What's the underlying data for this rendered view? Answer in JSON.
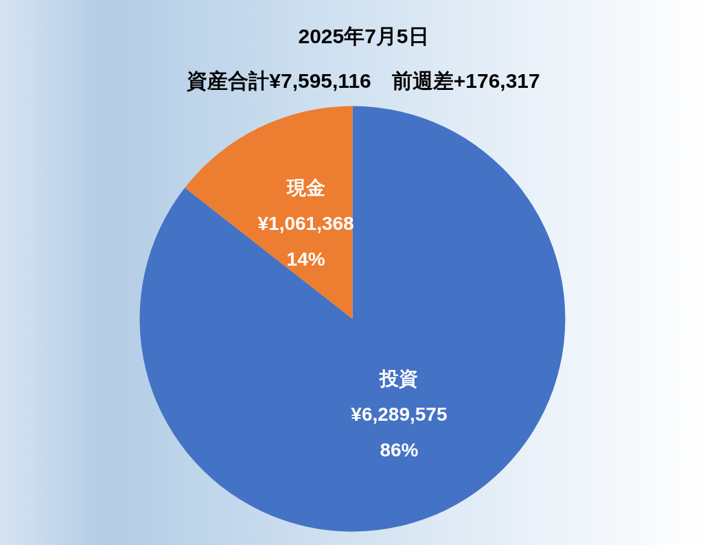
{
  "chart_data": {
    "type": "pie",
    "title": "2025年7月5日",
    "subtitle": "資産合計¥7,595,116　前週差+176,317",
    "categories": [
      "投資",
      "現金"
    ],
    "values": [
      6289575,
      1061368
    ],
    "colors": [
      "#4472c4",
      "#ed7d31"
    ],
    "value_labels": [
      "¥6,289,575\n86%",
      "¥1,061,368\n14%"
    ]
  }
}
